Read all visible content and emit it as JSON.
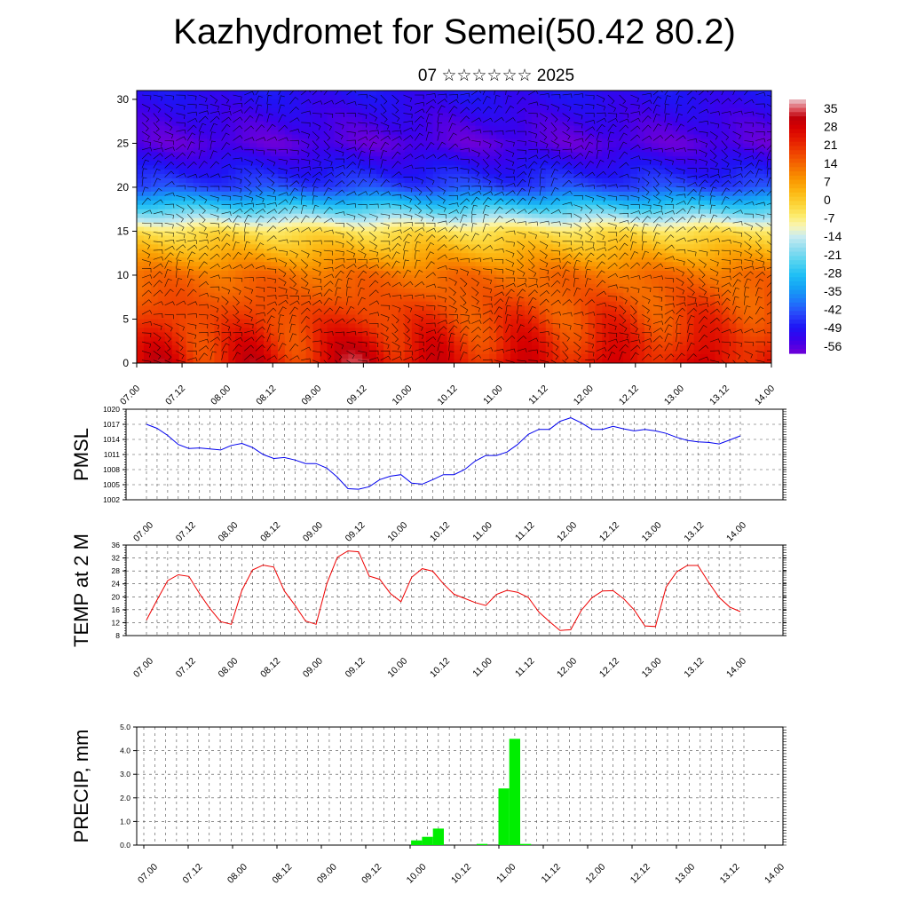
{
  "title": "Kazhydromet for Semei(50.42 80.2)",
  "subtitle": "07 ☆☆☆☆☆☆ 2025",
  "colors": {
    "pmsl_line": "#0000ee",
    "temp_line": "#ee0000",
    "precip_bar": "#00ee00",
    "frame": "#000000"
  },
  "chart_data": [
    {
      "type": "heatmap",
      "name": "vertical-section",
      "ylim": [
        0,
        31
      ],
      "yticks": [
        0,
        5,
        10,
        15,
        20,
        25,
        30
      ],
      "xticks": [
        "07.00",
        "07.12",
        "08.00",
        "08.12",
        "09.00",
        "09.12",
        "10.00",
        "10.12",
        "11.00",
        "11.12",
        "12.00",
        "12.12",
        "13.00",
        "13.12",
        "14.00"
      ],
      "overlay": "wind barbs and contour lines",
      "colorbar": {
        "labels": [
          "35",
          "28",
          "21",
          "14",
          "7",
          "0",
          "-7",
          "-14",
          "-21",
          "-28",
          "-35",
          "-42",
          "-49",
          "-56"
        ],
        "range": [
          -60,
          38
        ]
      },
      "field_description_levels": {
        "surface_day": 30,
        "surface_night": 18,
        "level_10": 12,
        "level_15": -5,
        "level_20": -45,
        "level_25": -58,
        "level_30": -52
      }
    },
    {
      "type": "line",
      "name": "pmsl",
      "ylabel": "PMSL",
      "ylim": [
        1002,
        1020
      ],
      "yticks": [
        "1002",
        "1005",
        "1008",
        "1011",
        "1014",
        "1017",
        "1020"
      ],
      "xticks": [
        "07.00",
        "07.12",
        "08.00",
        "08.12",
        "09.00",
        "09.12",
        "10.00",
        "10.12",
        "11.00",
        "11.12",
        "12.00",
        "12.12",
        "13.00",
        "13.12",
        "14.00"
      ],
      "x_step_hours": 3,
      "values": [
        1017,
        1016.2,
        1014.8,
        1013,
        1012.2,
        1012.3,
        1012.1,
        1011.9,
        1012.8,
        1013.2,
        1012.4,
        1011,
        1010.2,
        1010.4,
        1009.9,
        1009.2,
        1009.2,
        1008.3,
        1006.5,
        1004.2,
        1004.1,
        1004.6,
        1006,
        1006.7,
        1007,
        1005.3,
        1005.1,
        1006,
        1007,
        1007,
        1008,
        1009.7,
        1010.8,
        1010.8,
        1011.5,
        1013,
        1015,
        1016,
        1016,
        1017.6,
        1018.3,
        1017.3,
        1016,
        1016,
        1016.6,
        1016.1,
        1015.7,
        1016,
        1015.7,
        1015.2,
        1014.4,
        1013.8,
        1013.5,
        1013.4,
        1013.1,
        1013.9,
        1014.7
      ]
    },
    {
      "type": "line",
      "name": "temp-2m",
      "ylabel": "TEMP at 2 M",
      "ylim": [
        8,
        36
      ],
      "yticks": [
        "8",
        "12",
        "16",
        "20",
        "24",
        "28",
        "32",
        "36"
      ],
      "xticks": [
        "07.00",
        "07.12",
        "08.00",
        "08.12",
        "09.00",
        "09.12",
        "10.00",
        "10.12",
        "11.00",
        "11.12",
        "12.00",
        "12.12",
        "13.00",
        "13.12",
        "14.00"
      ],
      "x_step_hours": 3,
      "values": [
        12.8,
        19,
        25,
        26.8,
        26.3,
        21,
        16.3,
        12.3,
        11.5,
        22,
        28.3,
        29.8,
        29.2,
        21.8,
        17.4,
        12.5,
        11.5,
        24,
        32.2,
        34.2,
        33.9,
        26.4,
        25.4,
        21,
        18.5,
        26,
        28.7,
        27.9,
        24,
        20.8,
        19.5,
        18.2,
        17.3,
        20.7,
        22,
        21.4,
        19.8,
        15.3,
        12.3,
        9.6,
        9.8,
        15.8,
        19.7,
        21.8,
        21.9,
        19.4,
        15.9,
        11,
        10.8,
        23,
        27.7,
        29.7,
        29.7,
        24.5,
        19.8,
        16.8,
        15.4
      ]
    },
    {
      "type": "bar",
      "name": "precip",
      "ylabel": "PRECIP, mm",
      "ylim": [
        0,
        5
      ],
      "yticks": [
        "0.0",
        "1.0",
        "2.0",
        "3.0",
        "4.0",
        "5.0"
      ],
      "xticks": [
        "07.00",
        "07.12",
        "08.00",
        "08.12",
        "09.00",
        "09.12",
        "10.00",
        "10.12",
        "11.00",
        "11.12",
        "12.00",
        "12.12",
        "13.00",
        "13.12",
        "14.00"
      ],
      "x_step_hours": 3,
      "values": [
        0,
        0,
        0,
        0,
        0,
        0,
        0,
        0,
        0,
        0,
        0,
        0,
        0,
        0,
        0,
        0,
        0,
        0,
        0,
        0,
        0,
        0,
        0,
        0,
        0,
        0.2,
        0.35,
        0.7,
        0,
        0,
        0,
        0.05,
        0,
        2.4,
        4.5,
        0.05,
        0,
        0,
        0,
        0,
        0,
        0,
        0,
        0,
        0,
        0,
        0,
        0,
        0,
        0,
        0,
        0,
        0,
        0,
        0,
        0
      ]
    }
  ]
}
